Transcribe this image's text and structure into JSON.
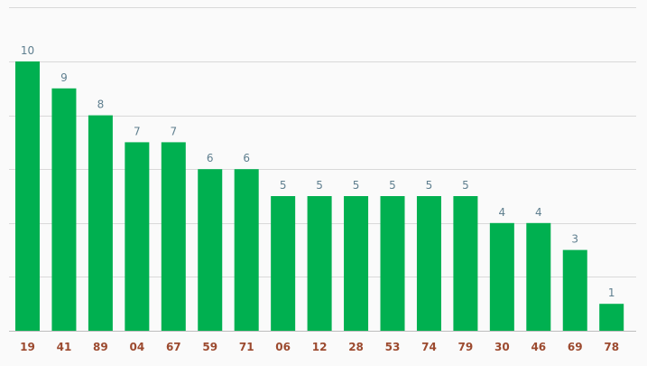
{
  "chart_data": {
    "type": "bar",
    "title": "",
    "xlabel": "",
    "ylabel": "",
    "categories": [
      "19",
      "41",
      "89",
      "04",
      "67",
      "59",
      "71",
      "06",
      "12",
      "28",
      "53",
      "74",
      "79",
      "30",
      "46",
      "69",
      "78"
    ],
    "values": [
      10,
      9,
      8,
      7,
      7,
      6,
      6,
      5,
      5,
      5,
      5,
      5,
      5,
      4,
      4,
      3,
      1
    ],
    "ylim": [
      0,
      12
    ],
    "grid": true,
    "legend": "none",
    "colors": {
      "bar": "#00b050",
      "value_label": "#5f7f8f",
      "category_label": "#9c4a2f",
      "grid": "#d9d9d9",
      "axis": "#bdbdbd",
      "background": "#fafafa"
    }
  }
}
